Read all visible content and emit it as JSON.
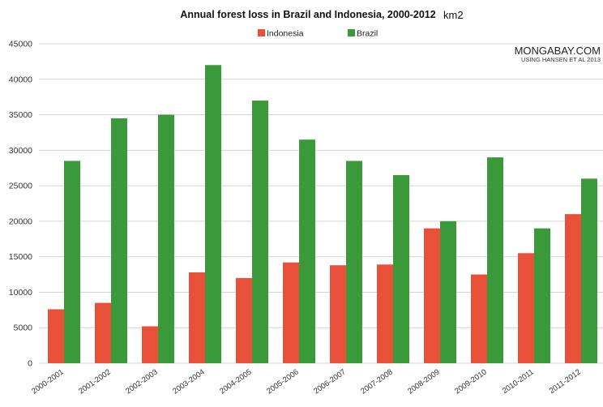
{
  "chart_data": {
    "type": "bar",
    "title": "Annual forest loss in Brazil and Indonesia, 2000-2012",
    "unit_label": "km2",
    "credit": {
      "line1": "MONGABAY.COM",
      "line2": "USING HANSEN ET AL 2013"
    },
    "categories": [
      "2000-2001",
      "2001-2002",
      "2002-2003",
      "2003-2004",
      "2004-2005",
      "2005-2006",
      "2006-2007",
      "2007-2008",
      "2008-2009",
      "2009-2010",
      "2010-2011",
      "2011-2012"
    ],
    "series": [
      {
        "name": "Indonesia",
        "color": "#e8503a",
        "values": [
          7600,
          8500,
          5200,
          12800,
          12000,
          14200,
          13800,
          13900,
          19000,
          12500,
          15500,
          21000
        ]
      },
      {
        "name": "Brazil",
        "color": "#3a9a3a",
        "values": [
          28500,
          34500,
          35000,
          42000,
          37000,
          31500,
          28500,
          26500,
          20000,
          29000,
          19000,
          26000
        ]
      }
    ],
    "ylim": [
      0,
      45000
    ],
    "yticks": [
      "0",
      "5000",
      "10000",
      "15000",
      "20000",
      "25000",
      "30000",
      "35000",
      "40000",
      "45000"
    ],
    "grid": true,
    "legend_position": "top-center"
  }
}
